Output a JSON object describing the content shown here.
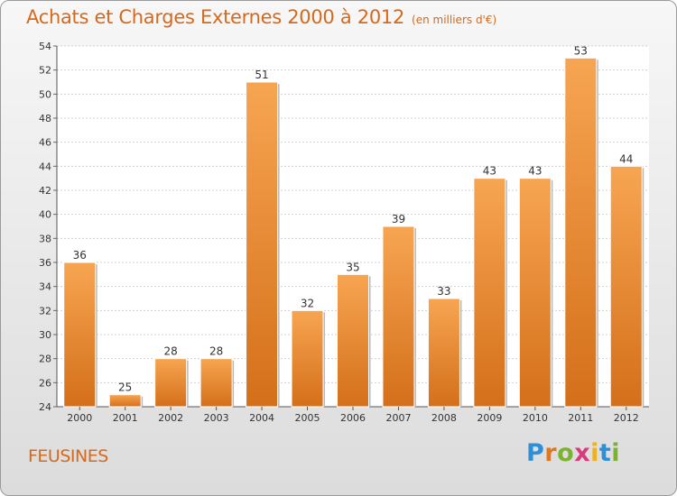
{
  "title": "Achats et Charges Externes 2000 à 2012",
  "subtitle": "(en milliers d'€)",
  "commune": "FEUSINES",
  "logo": {
    "letters": [
      "P",
      "r",
      "o",
      "x",
      "i",
      "t",
      "i"
    ],
    "colors": [
      "#2f8fd6",
      "#e2761c",
      "#7bb32e",
      "#d93a7c",
      "#f2b01e",
      "#2f8fd6",
      "#7bb32e"
    ]
  },
  "colors": {
    "bar_top": "#f7a552",
    "bar_bottom": "#d46f1a",
    "accent": "#d5691c"
  },
  "chart_data": {
    "type": "bar",
    "categories": [
      "2000",
      "2001",
      "2002",
      "2003",
      "2004",
      "2005",
      "2006",
      "2007",
      "2008",
      "2009",
      "2010",
      "2011",
      "2012"
    ],
    "values": [
      36,
      25,
      28,
      28,
      51,
      32,
      35,
      39,
      33,
      43,
      43,
      53,
      44
    ],
    "ylim": [
      24,
      54
    ],
    "yticks": [
      24,
      26,
      28,
      30,
      32,
      34,
      36,
      38,
      40,
      42,
      44,
      46,
      48,
      50,
      52,
      54
    ],
    "grid": true,
    "data_labels": true
  }
}
